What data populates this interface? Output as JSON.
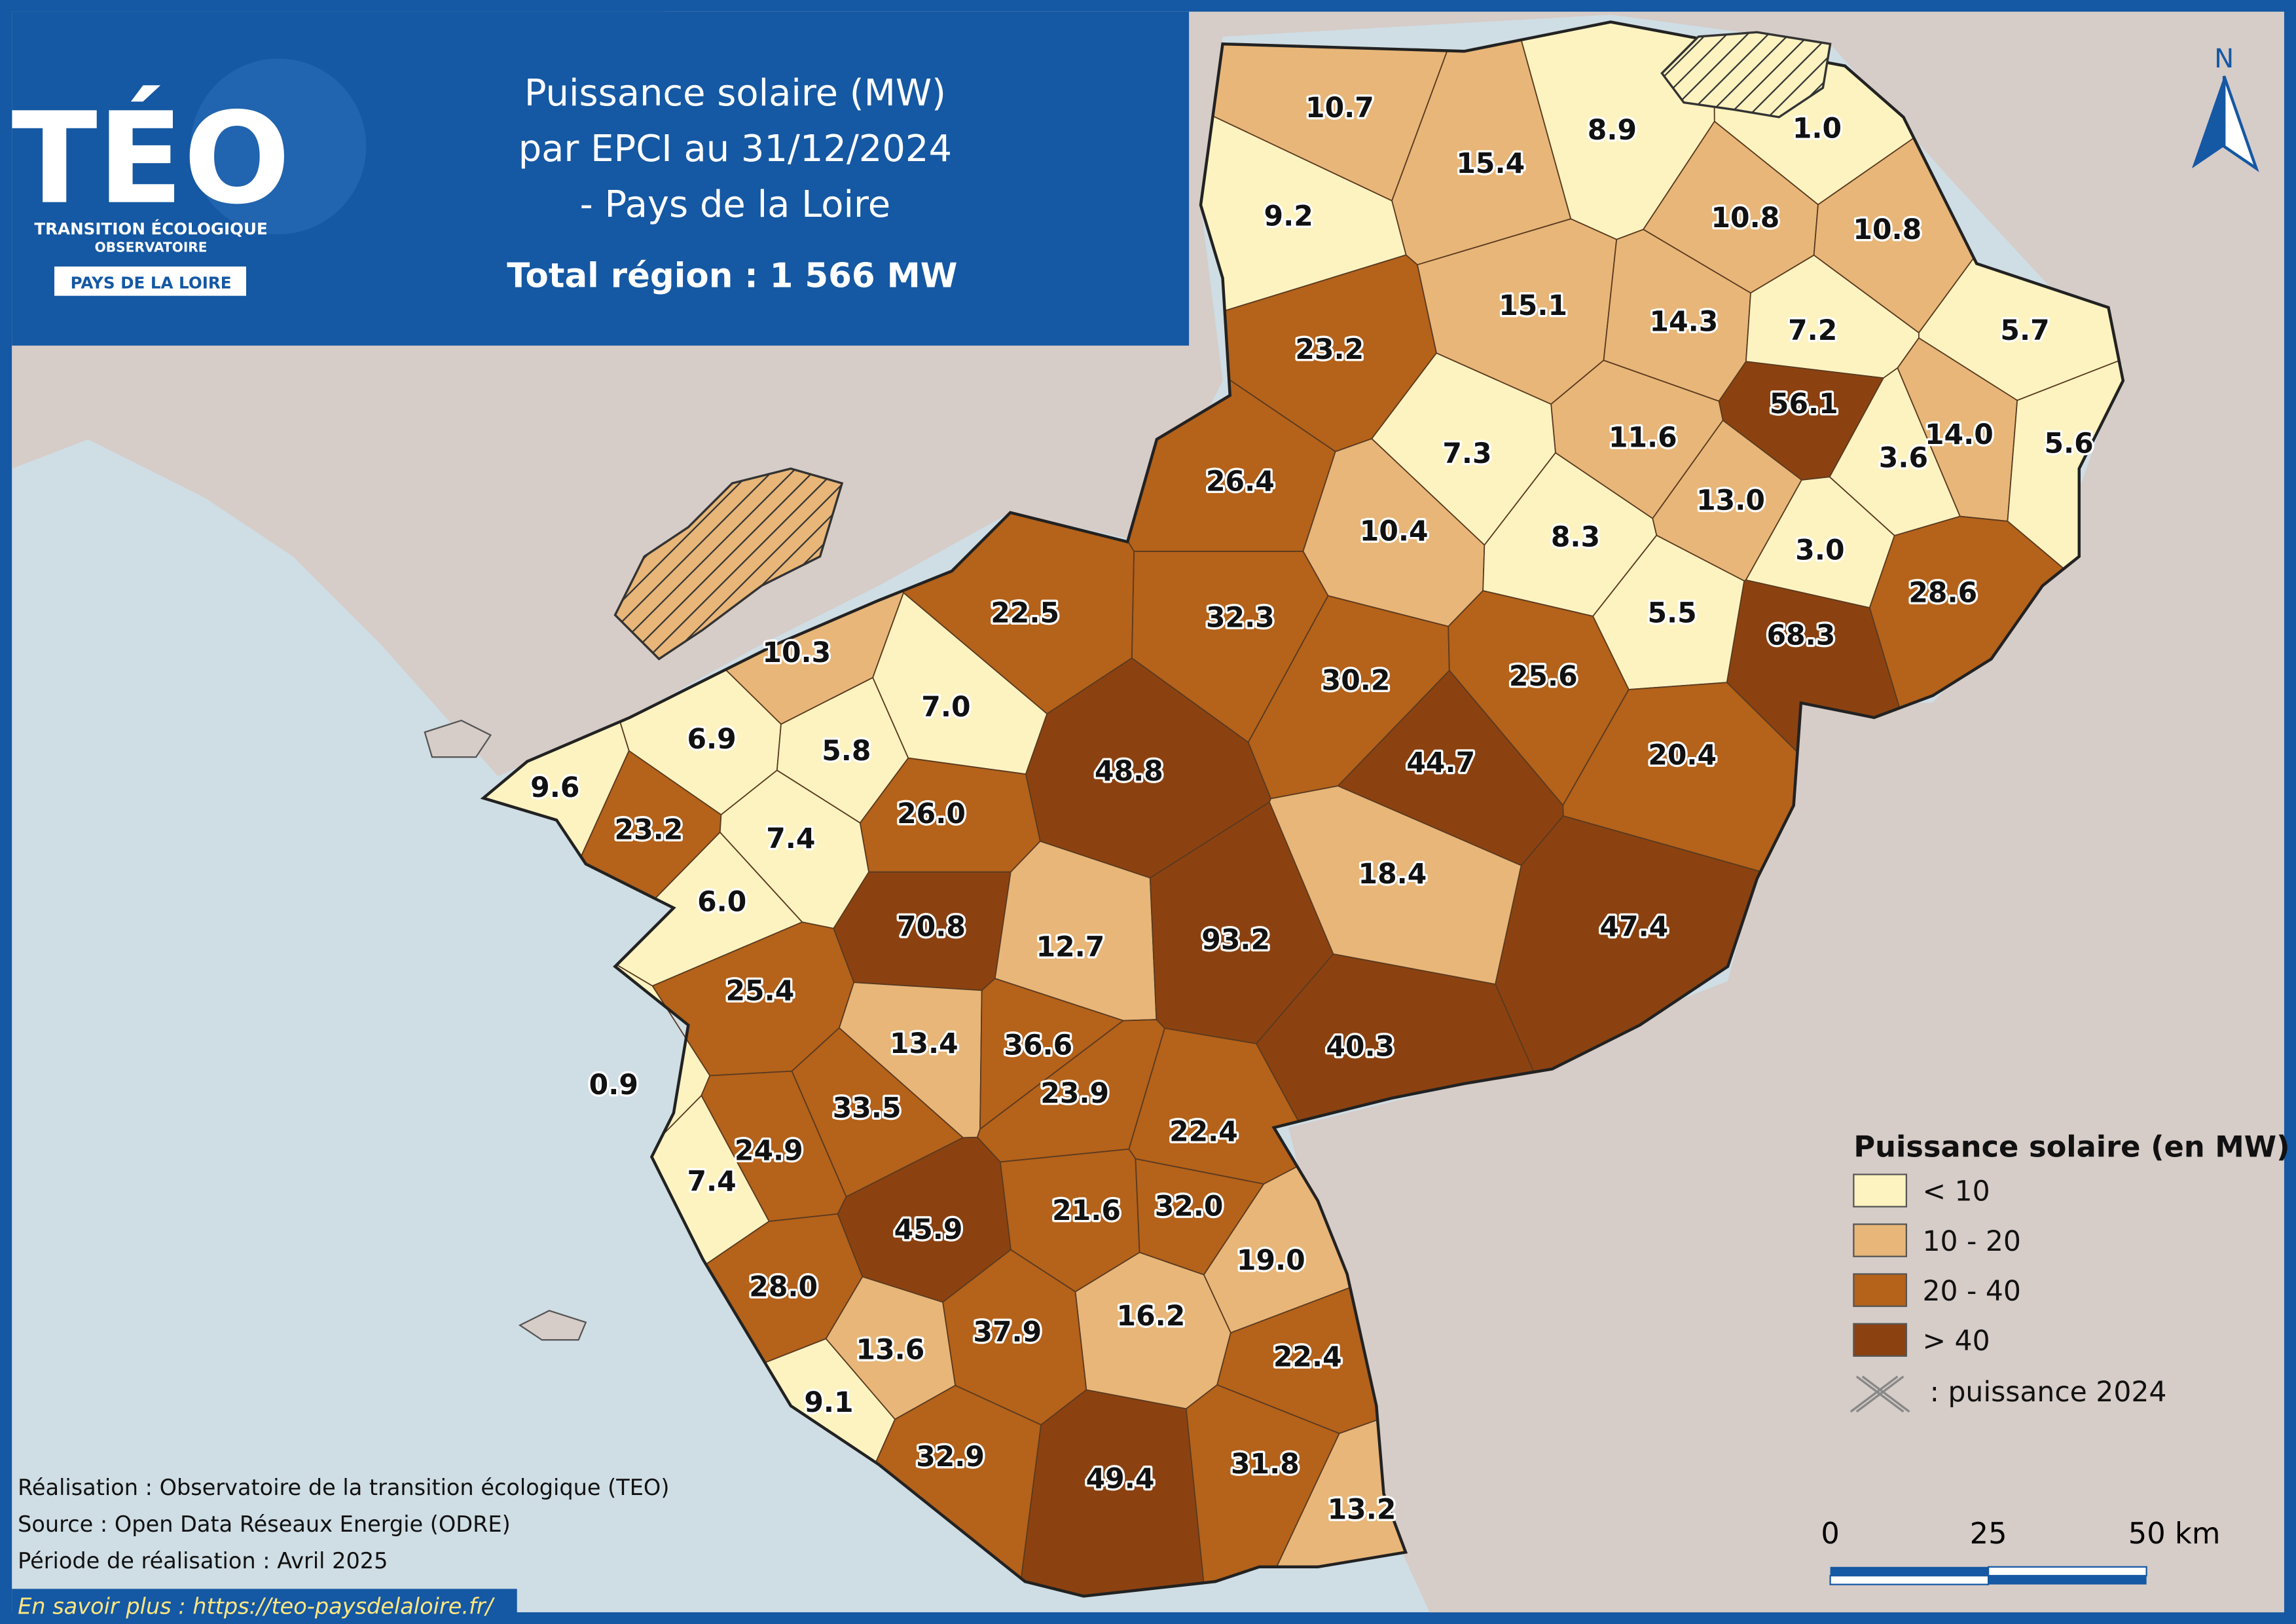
{
  "header": {
    "logo": "TÉO",
    "logo_line1": "TRANSITION ÉCOLOGIQUE",
    "logo_line2": "OBSERVATOIRE",
    "logo_badge": "PAYS DE LA LOIRE",
    "title_lines": [
      "Puissance solaire (MW)",
      "par EPCI au 31/12/2024",
      "- Pays de la Loire"
    ],
    "total": "Total région : 1 566 MW"
  },
  "map": {
    "north": "N",
    "regions": [
      {
        "label": "10.7",
        "color": "#e8b678"
      },
      {
        "label": "15.4",
        "color": "#e8b678"
      },
      {
        "label": "8.9",
        "color": "#fdf3c0"
      },
      {
        "label": "1.0",
        "color": "#fdf3c0"
      },
      {
        "label": "9.2",
        "color": "#fdf3c0"
      },
      {
        "label": "10.8",
        "color": "#e8b678"
      },
      {
        "label": "10.8",
        "color": "#e8b678"
      },
      {
        "label": "15.1",
        "color": "#e8b678"
      },
      {
        "label": "14.3",
        "color": "#e8b678"
      },
      {
        "label": "7.2",
        "color": "#fdf3c0"
      },
      {
        "label": "5.7",
        "color": "#fdf3c0"
      },
      {
        "label": "23.2",
        "color": "#b5621a"
      },
      {
        "label": "56.1",
        "color": "#8c4210"
      },
      {
        "label": "11.6",
        "color": "#e8b678"
      },
      {
        "label": "14.0",
        "color": "#e8b678"
      },
      {
        "label": "7.3",
        "color": "#fdf3c0"
      },
      {
        "label": "3.6",
        "color": "#fdf3c0"
      },
      {
        "label": "5.6",
        "color": "#fdf3c0"
      },
      {
        "label": "26.4",
        "color": "#b5621a"
      },
      {
        "label": "13.0",
        "color": "#e8b678"
      },
      {
        "label": "10.4",
        "color": "#e8b678"
      },
      {
        "label": "8.3",
        "color": "#fdf3c0"
      },
      {
        "label": "3.0",
        "color": "#fdf3c0"
      },
      {
        "label": "28.6",
        "color": "#b5621a"
      },
      {
        "label": "32.3",
        "color": "#b5621a"
      },
      {
        "label": "5.5",
        "color": "#fdf3c0"
      },
      {
        "label": "68.3",
        "color": "#8c4210"
      },
      {
        "label": "22.5",
        "color": "#b5621a"
      },
      {
        "label": "10.3",
        "color": "#e8b678"
      },
      {
        "label": "30.2",
        "color": "#b5621a"
      },
      {
        "label": "25.6",
        "color": "#b5621a"
      },
      {
        "label": "7.0",
        "color": "#fdf3c0"
      },
      {
        "label": "6.9",
        "color": "#fdf3c0"
      },
      {
        "label": "5.8",
        "color": "#fdf3c0"
      },
      {
        "label": "48.8",
        "color": "#8c4210"
      },
      {
        "label": "44.7",
        "color": "#8c4210"
      },
      {
        "label": "20.4",
        "color": "#b5621a"
      },
      {
        "label": "9.6",
        "color": "#fdf3c0"
      },
      {
        "label": "23.2",
        "color": "#b5621a"
      },
      {
        "label": "7.4",
        "color": "#fdf3c0"
      },
      {
        "label": "26.0",
        "color": "#b5621a"
      },
      {
        "label": "18.4",
        "color": "#e8b678"
      },
      {
        "label": "6.0",
        "color": "#fdf3c0"
      },
      {
        "label": "70.8",
        "color": "#8c4210"
      },
      {
        "label": "12.7",
        "color": "#e8b678"
      },
      {
        "label": "93.2",
        "color": "#8c4210"
      },
      {
        "label": "47.4",
        "color": "#8c4210"
      },
      {
        "label": "25.4",
        "color": "#b5621a"
      },
      {
        "label": "13.4",
        "color": "#e8b678"
      },
      {
        "label": "36.6",
        "color": "#b5621a"
      },
      {
        "label": "40.3",
        "color": "#8c4210"
      },
      {
        "label": "0.9",
        "color": "#fdf3c0"
      },
      {
        "label": "33.5",
        "color": "#b5621a"
      },
      {
        "label": "23.9",
        "color": "#b5621a"
      },
      {
        "label": "22.4",
        "color": "#b5621a"
      },
      {
        "label": "24.9",
        "color": "#b5621a"
      },
      {
        "label": "7.4",
        "color": "#fdf3c0"
      },
      {
        "label": "21.6",
        "color": "#b5621a"
      },
      {
        "label": "32.0",
        "color": "#b5621a"
      },
      {
        "label": "45.9",
        "color": "#8c4210"
      },
      {
        "label": "19.0",
        "color": "#e8b678"
      },
      {
        "label": "28.0",
        "color": "#b5621a"
      },
      {
        "label": "16.2",
        "color": "#e8b678"
      },
      {
        "label": "37.9",
        "color": "#b5621a"
      },
      {
        "label": "13.6",
        "color": "#e8b678"
      },
      {
        "label": "22.4",
        "color": "#b5621a"
      },
      {
        "label": "9.1",
        "color": "#fdf3c0"
      },
      {
        "label": "32.9",
        "color": "#b5621a"
      },
      {
        "label": "49.4",
        "color": "#8c4210"
      },
      {
        "label": "31.8",
        "color": "#b5621a"
      },
      {
        "label": "13.2",
        "color": "#e8b678"
      }
    ]
  },
  "legend": {
    "title": "Puissance solaire (en MW)",
    "items": [
      {
        "label": "< 10",
        "color": "#fdf3c0"
      },
      {
        "label": "10 - 20",
        "color": "#e8b678"
      },
      {
        "label": "20 - 40",
        "color": "#b5621a"
      },
      {
        "label": "> 40",
        "color": "#8c4210"
      }
    ],
    "hatch_label": ": puissance 2024"
  },
  "scale": {
    "labels": [
      "0",
      "25",
      "50 km"
    ]
  },
  "credits": [
    "Réalisation : Observatoire de la transition écologique (TEO)",
    "Source : Open Data Réseaux Energie (ODRE)",
    "Période de réalisation : Avril 2025"
  ],
  "link": "En savoir plus : https://teo-paysdelaloire.fr/"
}
